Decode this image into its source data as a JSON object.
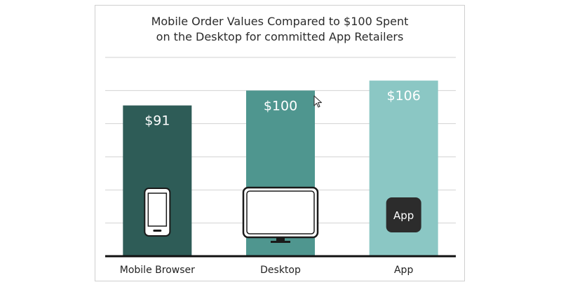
{
  "chart_data": {
    "type": "bar",
    "title_lines": [
      "Mobile Order Values Compared to $100 Spent",
      "on the Desktop for committed App Retailers"
    ],
    "categories": [
      "Mobile Browser",
      "Desktop",
      "App"
    ],
    "values": [
      91,
      100,
      106
    ],
    "data_labels": [
      "$91",
      "$100",
      "$106"
    ],
    "bar_colors": [
      "#2e5c57",
      "#4f968f",
      "#8bc7c4"
    ],
    "category_icons": [
      "smartphone-icon",
      "desktop-monitor-icon",
      "app-icon"
    ],
    "app_icon_text": "App",
    "ylim": [
      0,
      120
    ],
    "grid": true,
    "xlabel": "",
    "ylabel": ""
  }
}
